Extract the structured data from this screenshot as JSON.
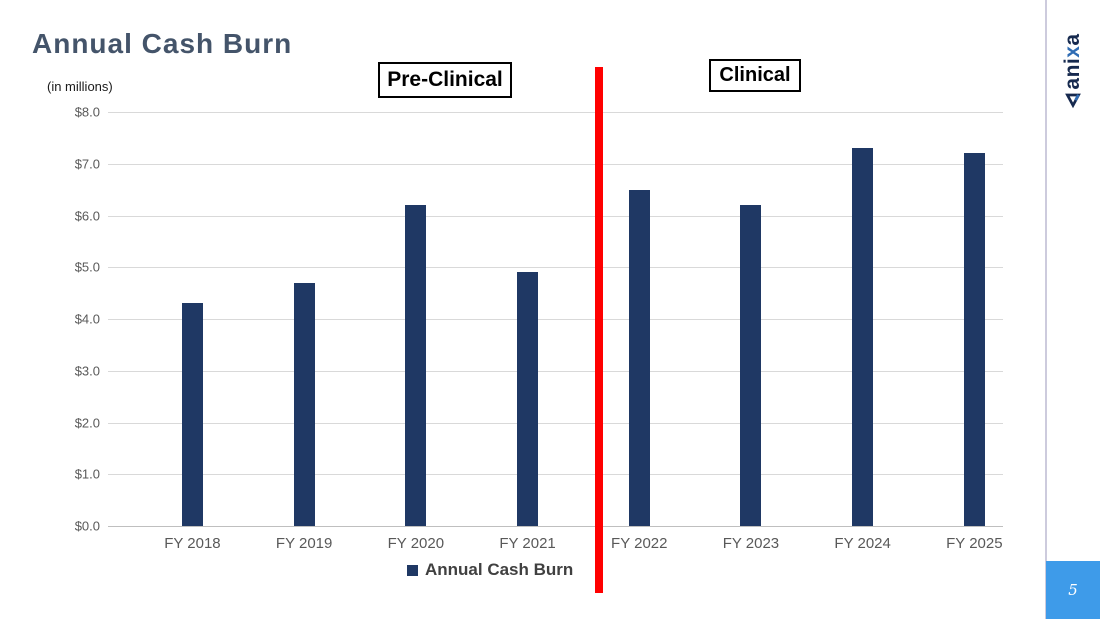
{
  "slide": {
    "title": "Annual Cash Burn",
    "page_number": "5"
  },
  "logo": {
    "prefix": "ani",
    "accent": "x",
    "suffix": "a"
  },
  "colors": {
    "bar": "#1f3864",
    "title_text": "#44546a",
    "phase_divider_red": "#ff0000",
    "badge_blue": "#3e9be9",
    "logo_navy": "#16294e",
    "logo_blue": "#2f6cb4",
    "gridline": "#d9d9d9",
    "axis_text": "#595959"
  },
  "chart_data": {
    "type": "bar",
    "title": "Annual Cash Burn",
    "units": "(in millions)",
    "categories": [
      "FY 2018",
      "FY 2019",
      "FY 2020",
      "FY 2021",
      "FY 2022",
      "FY 2023",
      "FY 2024",
      "FY 2025"
    ],
    "values": [
      4.3,
      4.7,
      6.2,
      4.9,
      6.5,
      6.2,
      7.3,
      7.2
    ],
    "bar_color": "#1f3864",
    "ylim": [
      0,
      8
    ],
    "yticks": [
      {
        "value": 0,
        "label": "$0.0"
      },
      {
        "value": 1,
        "label": "$1.0"
      },
      {
        "value": 2,
        "label": "$2.0"
      },
      {
        "value": 3,
        "label": "$3.0"
      },
      {
        "value": 4,
        "label": "$4.0"
      },
      {
        "value": 5,
        "label": "$5.0"
      },
      {
        "value": 6,
        "label": "$6.0"
      },
      {
        "value": 7,
        "label": "$7.0"
      },
      {
        "value": 8,
        "label": "$8.0"
      }
    ],
    "grid": true,
    "legend": [
      "Annual Cash Burn"
    ],
    "legend_position": "bottom",
    "annotations": [
      {
        "label": "Pre-Clinical",
        "applies_to": "FY 2018 - FY 2021"
      },
      {
        "label": "Clinical",
        "applies_to": "FY 2022 - FY 2025"
      },
      {
        "label": "phase-divider-line",
        "color": "#ff0000",
        "between": [
          "FY 2021",
          "FY 2022"
        ]
      }
    ]
  }
}
